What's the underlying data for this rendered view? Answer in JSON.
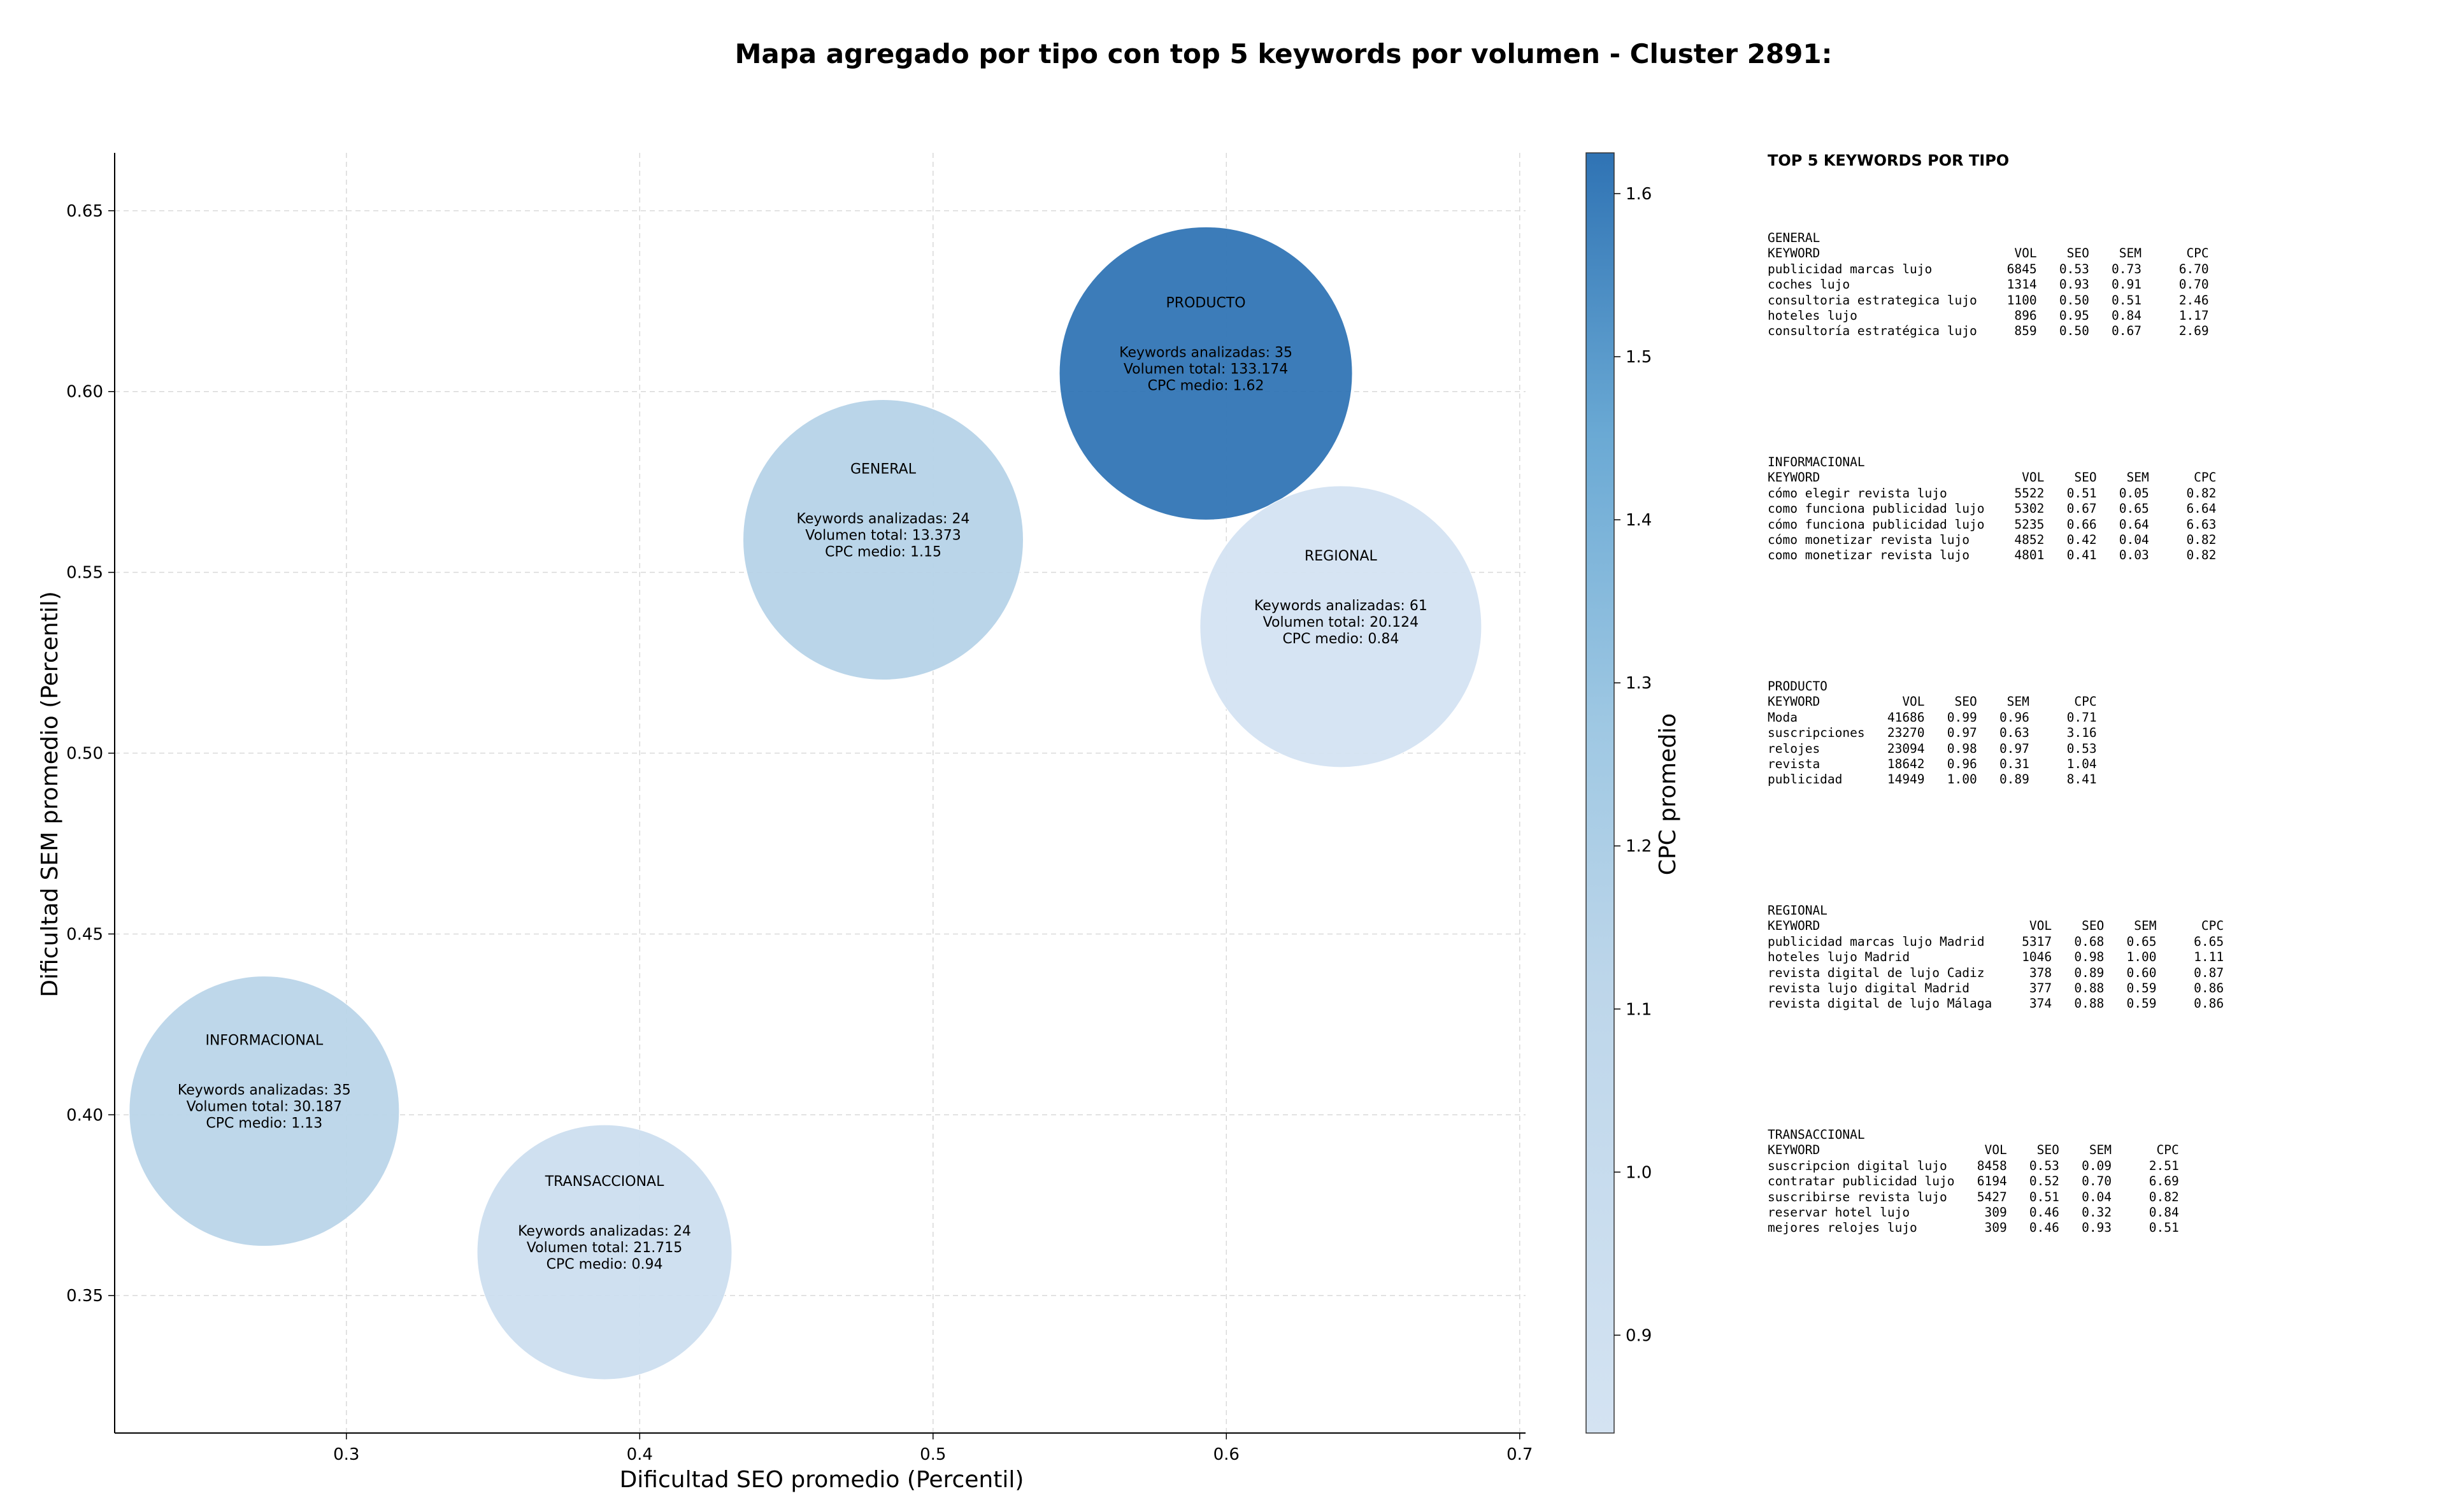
{
  "chart_data": {
    "type": "scatter",
    "title": "Mapa agregado por tipo con top 5 keywords por volumen - Cluster 2891:",
    "xlabel": "Dificultad SEO promedio (Percentil)",
    "ylabel": "Dificultad SEM promedio (Percentil)",
    "colorbar_label": "CPC promedio",
    "xlim": [
      0.221,
      0.702
    ],
    "ylim": [
      0.312,
      0.666
    ],
    "x_ticks": [
      "0.3",
      "0.4",
      "0.5",
      "0.6",
      "0.7"
    ],
    "y_ticks": [
      "0.35",
      "0.40",
      "0.45",
      "0.50",
      "0.55",
      "0.60",
      "0.65"
    ],
    "colorbar_ticks": [
      "0.9",
      "1.0",
      "1.1",
      "1.2",
      "1.3",
      "1.4",
      "1.5",
      "1.6"
    ],
    "colorbar_range": [
      0.84,
      1.625
    ],
    "grid": true,
    "points": [
      {
        "name": "GENERAL",
        "x": 0.483,
        "y": 0.559,
        "cpc": 1.15,
        "line1": "Keywords analizadas: 24",
        "line2": "Volumen total: 13.373",
        "line3": "CPC medio: 1.15"
      },
      {
        "name": "PRODUCTO",
        "x": 0.593,
        "y": 0.605,
        "cpc": 1.62,
        "line1": "Keywords analizadas: 35",
        "line2": "Volumen total: 133.174",
        "line3": "CPC medio: 1.62"
      },
      {
        "name": "REGIONAL",
        "x": 0.639,
        "y": 0.535,
        "cpc": 0.84,
        "line1": "Keywords analizadas: 61",
        "line2": "Volumen total: 20.124",
        "line3": "CPC medio: 0.84"
      },
      {
        "name": "INFORMACIONAL",
        "x": 0.272,
        "y": 0.401,
        "cpc": 1.13,
        "line1": "Keywords analizadas: 35",
        "line2": "Volumen total: 30.187",
        "line3": "CPC medio: 1.13"
      },
      {
        "name": "TRANSACCIONAL",
        "x": 0.388,
        "y": 0.362,
        "cpc": 0.94,
        "line1": "Keywords analizadas: 24",
        "line2": "Volumen total: 21.715",
        "line3": "CPC medio: 0.94"
      }
    ]
  },
  "side_panel": {
    "title": "TOP 5 KEYWORDS POR TIPO",
    "blocks": [
      {
        "lines": [
          "GENERAL",
          "KEYWORD                          VOL    SEO    SEM      CPC",
          "publicidad marcas lujo          6845   0.53   0.73     6.70",
          "coches lujo                     1314   0.93   0.91     0.70",
          "consultoria estrategica lujo    1100   0.50   0.51     2.46",
          "hoteles lujo                     896   0.95   0.84     1.17",
          "consultoría estratégica lujo     859   0.50   0.67     2.69"
        ]
      },
      {
        "lines": [
          "INFORMACIONAL",
          "KEYWORD                           VOL    SEO    SEM      CPC",
          "cómo elegir revista lujo         5522   0.51   0.05     0.82",
          "como funciona publicidad lujo    5302   0.67   0.65     6.64",
          "cómo funciona publicidad lujo    5235   0.66   0.64     6.63",
          "cómo monetizar revista lujo      4852   0.42   0.04     0.82",
          "como monetizar revista lujo      4801   0.41   0.03     0.82"
        ]
      },
      {
        "lines": [
          "PRODUCTO",
          "KEYWORD           VOL    SEO    SEM      CPC",
          "Moda            41686   0.99   0.96     0.71",
          "suscripciones   23270   0.97   0.63     3.16",
          "relojes         23094   0.98   0.97     0.53",
          "revista         18642   0.96   0.31     1.04",
          "publicidad      14949   1.00   0.89     8.41"
        ]
      },
      {
        "lines": [
          "REGIONAL",
          "KEYWORD                            VOL    SEO    SEM      CPC",
          "publicidad marcas lujo Madrid     5317   0.68   0.65     6.65",
          "hoteles lujo Madrid               1046   0.98   1.00     1.11",
          "revista digital de lujo Cadiz      378   0.89   0.60     0.87",
          "revista lujo digital Madrid        377   0.88   0.59     0.86",
          "revista digital de lujo Málaga     374   0.88   0.59     0.86"
        ]
      },
      {
        "lines": [
          "TRANSACCIONAL",
          "KEYWORD                      VOL    SEO    SEM      CPC",
          "suscripcion digital lujo    8458   0.53   0.09     2.51",
          "contratar publicidad lujo   6194   0.52   0.70     6.69",
          "suscribirse revista lujo    5427   0.51   0.04     0.82",
          "reservar hotel lujo          309   0.46   0.32     0.84",
          "mejores relojes lujo         309   0.46   0.93     0.51"
        ]
      }
    ]
  }
}
